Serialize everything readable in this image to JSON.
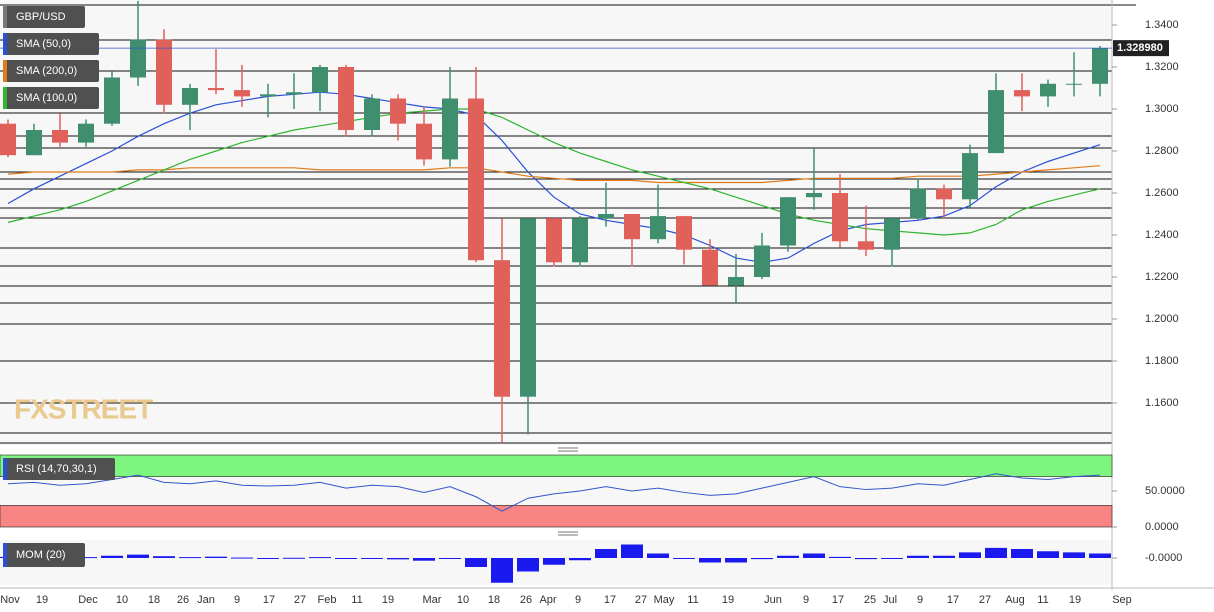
{
  "chart_data": [
    {
      "type": "candlestick",
      "title": "GBP/USD",
      "watermark": "FXSTREET",
      "x_labels": [
        "Nov",
        "19",
        "Dec",
        "10",
        "18",
        "26",
        "Jan",
        "9",
        "17",
        "27",
        "Feb",
        "11",
        "19",
        "Mar",
        "10",
        "18",
        "26",
        "Apr",
        "9",
        "17",
        "27",
        "May",
        "11",
        "19",
        "Jun",
        "9",
        "17",
        "25",
        "Jul",
        "9",
        "17",
        "27",
        "Aug",
        "11",
        "19",
        "Sep"
      ],
      "open": [
        1.293,
        1.278,
        1.29,
        1.284,
        1.293,
        1.315,
        1.333,
        1.302,
        1.31,
        1.309,
        1.306,
        1.307,
        1.308,
        1.32,
        1.29,
        1.305,
        1.293,
        1.276,
        1.305,
        1.228,
        1.163,
        1.248,
        1.227,
        1.248,
        1.25,
        1.238,
        1.249,
        1.233,
        1.216,
        1.22,
        1.235,
        1.258,
        1.26,
        1.237,
        1.233,
        1.248,
        1.262,
        1.257,
        1.279,
        1.309,
        1.306,
        1.312,
        1.312
      ],
      "high": [
        1.295,
        1.293,
        1.298,
        1.295,
        1.318,
        1.3515,
        1.338,
        1.312,
        1.3285,
        1.321,
        1.312,
        1.317,
        1.321,
        1.321,
        1.307,
        1.307,
        1.301,
        1.32,
        1.32,
        1.248,
        1.248,
        1.248,
        1.249,
        1.265,
        1.25,
        1.264,
        1.249,
        1.238,
        1.231,
        1.241,
        1.258,
        1.281,
        1.269,
        1.254,
        1.248,
        1.267,
        1.264,
        1.283,
        1.317,
        1.317,
        1.314,
        1.327,
        1.33
      ],
      "low": [
        1.277,
        1.278,
        1.282,
        1.282,
        1.292,
        1.311,
        1.298,
        1.29,
        1.307,
        1.301,
        1.296,
        1.3,
        1.299,
        1.287,
        1.287,
        1.285,
        1.273,
        1.2725,
        1.227,
        1.141,
        1.145,
        1.225,
        1.225,
        1.244,
        1.225,
        1.236,
        1.226,
        1.216,
        1.208,
        1.219,
        1.232,
        1.252,
        1.234,
        1.23,
        1.225,
        1.247,
        1.248,
        1.253,
        1.279,
        1.299,
        1.301,
        1.306,
        1.306
      ],
      "close": [
        1.278,
        1.29,
        1.284,
        1.293,
        1.315,
        1.333,
        1.302,
        1.31,
        1.309,
        1.306,
        1.307,
        1.308,
        1.32,
        1.29,
        1.305,
        1.293,
        1.276,
        1.305,
        1.228,
        1.163,
        1.248,
        1.227,
        1.248,
        1.25,
        1.238,
        1.249,
        1.233,
        1.216,
        1.22,
        1.235,
        1.258,
        1.26,
        1.237,
        1.233,
        1.248,
        1.262,
        1.257,
        1.279,
        1.309,
        1.306,
        1.312,
        1.312,
        1.329
      ],
      "up_color": "#3f8f6f",
      "down_color": "#e0605a",
      "series": [
        {
          "name": "SMA (50,0)",
          "color": "#2a4fd8",
          "values": [
            1.255,
            1.262,
            1.268,
            1.274,
            1.28,
            1.287,
            1.293,
            1.298,
            1.302,
            1.304,
            1.306,
            1.307,
            1.308,
            1.307,
            1.305,
            1.303,
            1.301,
            1.3,
            1.297,
            1.285,
            1.27,
            1.258,
            1.25,
            1.247,
            1.245,
            1.243,
            1.24,
            1.235,
            1.229,
            1.227,
            1.229,
            1.236,
            1.242,
            1.245,
            1.246,
            1.247,
            1.249,
            1.254,
            1.263,
            1.27,
            1.275,
            1.279,
            1.283
          ]
        },
        {
          "name": "SMA (200,0)",
          "color": "#e07b1a",
          "values": [
            1.269,
            1.27,
            1.27,
            1.27,
            1.27,
            1.271,
            1.271,
            1.272,
            1.272,
            1.272,
            1.272,
            1.272,
            1.271,
            1.271,
            1.271,
            1.271,
            1.271,
            1.272,
            1.272,
            1.27,
            1.268,
            1.267,
            1.266,
            1.266,
            1.266,
            1.265,
            1.265,
            1.265,
            1.265,
            1.265,
            1.266,
            1.267,
            1.267,
            1.267,
            1.267,
            1.268,
            1.268,
            1.268,
            1.269,
            1.27,
            1.271,
            1.272,
            1.273
          ]
        },
        {
          "name": "SMA (100,0)",
          "color": "#2fb52f",
          "values": [
            1.246,
            1.249,
            1.252,
            1.256,
            1.261,
            1.266,
            1.271,
            1.276,
            1.28,
            1.284,
            1.287,
            1.29,
            1.292,
            1.294,
            1.296,
            1.298,
            1.299,
            1.3,
            1.3,
            1.296,
            1.29,
            1.284,
            1.279,
            1.275,
            1.271,
            1.268,
            1.265,
            1.262,
            1.258,
            1.254,
            1.25,
            1.247,
            1.245,
            1.243,
            1.242,
            1.241,
            1.24,
            1.241,
            1.245,
            1.252,
            1.256,
            1.259,
            1.262
          ]
        }
      ],
      "last_price": {
        "value": 1.32898,
        "label": "1.328980"
      },
      "ylim": [
        1.14,
        1.3519
      ],
      "yticks": [
        {
          "value": 1.16,
          "label": "1.1600"
        },
        {
          "value": 1.18,
          "label": "1.1800"
        },
        {
          "value": 1.2,
          "label": "1.2000"
        },
        {
          "value": 1.22,
          "label": "1.2200"
        },
        {
          "value": 1.24,
          "label": "1.2400"
        },
        {
          "value": 1.26,
          "label": "1.2600"
        },
        {
          "value": 1.28,
          "label": "1.2800"
        },
        {
          "value": 1.3,
          "label": "1.3000"
        },
        {
          "value": 1.32,
          "label": "1.3200"
        },
        {
          "value": 1.34,
          "label": "1.3400"
        }
      ]
    },
    {
      "type": "line",
      "title": "RSI (14,70,30,1)",
      "color": "#3355cc",
      "values": [
        60,
        62,
        58,
        60,
        66,
        72,
        62,
        60,
        64,
        58,
        57,
        58,
        62,
        54,
        58,
        56,
        48,
        56,
        42,
        22,
        40,
        46,
        50,
        56,
        50,
        54,
        48,
        44,
        46,
        54,
        62,
        70,
        56,
        52,
        54,
        60,
        58,
        66,
        74,
        68,
        66,
        70,
        72
      ],
      "bands": [
        {
          "from": 70,
          "to": 100,
          "color": "#7ef57e"
        },
        {
          "from": 0,
          "to": 30,
          "color": "#f88484"
        }
      ],
      "ylim": [
        0,
        100
      ],
      "yticks": [
        {
          "value": 0,
          "label": "0.0000"
        },
        {
          "value": 50,
          "label": "50.0000"
        }
      ]
    },
    {
      "type": "bar",
      "title": "MOM (20)",
      "color": "#1a1aee",
      "values": [
        0.005,
        0.003,
        0.002,
        0.004,
        0.01,
        0.015,
        0.008,
        0.004,
        0.006,
        0.002,
        0,
        0.001,
        0.004,
        -0.004,
        -0.002,
        -0.006,
        -0.012,
        -0.004,
        -0.04,
        -0.11,
        -0.06,
        -0.03,
        -0.01,
        0.04,
        0.06,
        0.02,
        0,
        -0.02,
        -0.02,
        -0.005,
        0.01,
        0.02,
        0.005,
        -0.005,
        0,
        0.01,
        0.01,
        0.025,
        0.045,
        0.04,
        0.03,
        0.025,
        0.02
      ],
      "ylim": [
        -0.12,
        0.08
      ],
      "yticks": [
        {
          "value": 0,
          "label": "-0.0000"
        }
      ]
    }
  ]
}
